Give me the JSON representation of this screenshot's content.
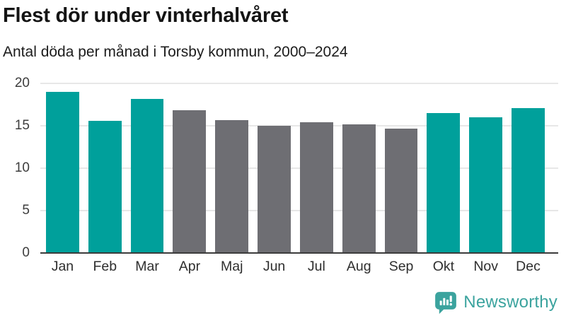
{
  "header": {
    "title": "Flest dör under vinterhalvåret",
    "subtitle": "Antal döda per månad i Torsby kommun, 2000–2024"
  },
  "chart_data": {
    "type": "bar",
    "title": "Flest dör under vinterhalvåret",
    "subtitle": "Antal döda per månad i Torsby kommun, 2000–2024",
    "categories": [
      "Jan",
      "Feb",
      "Mar",
      "Apr",
      "Maj",
      "Jun",
      "Jul",
      "Aug",
      "Sep",
      "Okt",
      "Nov",
      "Dec"
    ],
    "values": [
      19.0,
      15.6,
      18.2,
      16.8,
      15.7,
      15.0,
      15.4,
      15.2,
      14.7,
      16.5,
      16.0,
      17.1
    ],
    "bar_colors": [
      "#00a09b",
      "#00a09b",
      "#00a09b",
      "#6e6e73",
      "#6e6e73",
      "#6e6e73",
      "#6e6e73",
      "#6e6e73",
      "#6e6e73",
      "#00a09b",
      "#00a09b",
      "#00a09b"
    ],
    "highlight_color": "#00a09b",
    "muted_color": "#6e6e73",
    "xlabel": "",
    "ylabel": "",
    "ylim": [
      0,
      20
    ],
    "yticks": [
      0,
      5,
      10,
      15,
      20
    ],
    "grid": "horizontal",
    "legend": "none"
  },
  "branding": {
    "logo_text": "Newsworthy",
    "logo_color": "#3ba39e",
    "logo_icon": "newsworthy-speech-bubble-chart-icon"
  }
}
